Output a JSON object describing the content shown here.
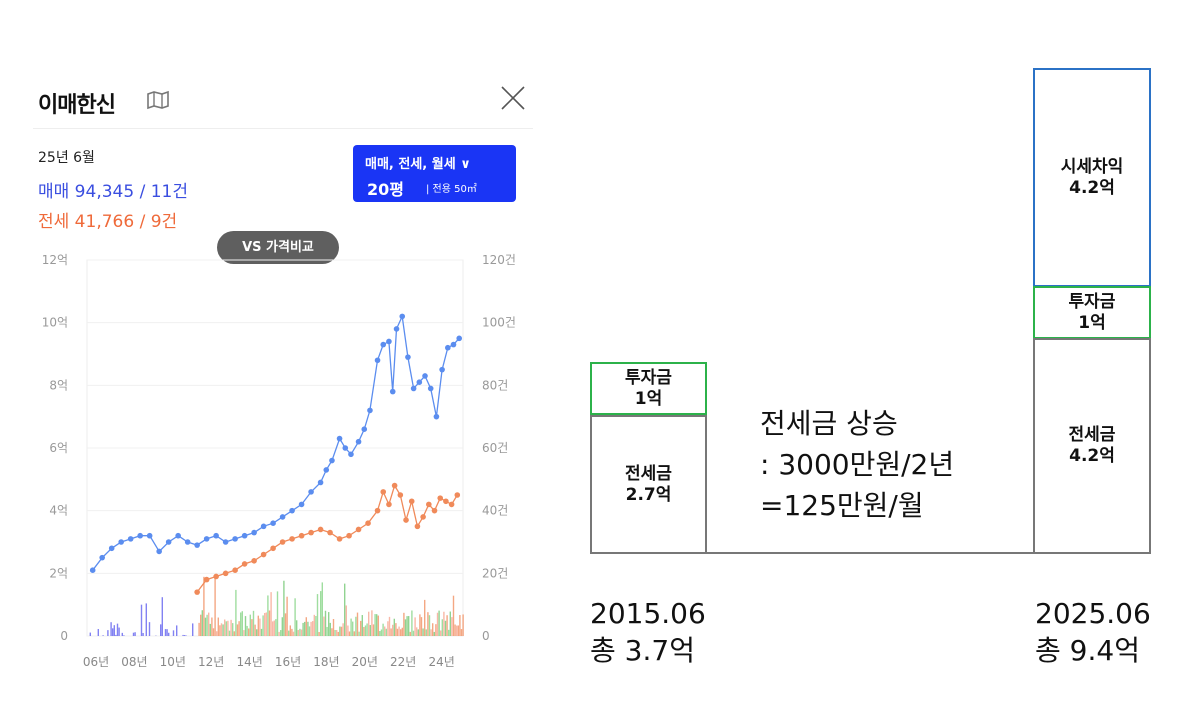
{
  "panel": {
    "title": "이매한신",
    "date": "25년 6월",
    "sale_summary": "매매 94,345 / 11건",
    "jeonse_summary": "전세 41,766 / 9건",
    "filter": {
      "types": "매매, 전세, 월세 ∨",
      "size": "20평",
      "area": "| 전용 50㎡"
    },
    "vs_button": "VS 가격비교"
  },
  "colors": {
    "sale": "#5b8def",
    "jeonse": "#f08a5a",
    "filter_bg": "#1a35f5",
    "green": "#2cb24a",
    "blue_border": "#2b72c6"
  },
  "chart_data": {
    "type": "line",
    "x_ticks": [
      "06년",
      "08년",
      "10년",
      "12년",
      "14년",
      "16년",
      "18년",
      "20년",
      "22년",
      "24년"
    ],
    "y_left_ticks": [
      "12억",
      "10억",
      "8억",
      "6억",
      "4억",
      "2억",
      "0"
    ],
    "y_right_ticks": [
      "120건",
      "100건",
      "80건",
      "60건",
      "40건",
      "20건",
      "0"
    ],
    "ylim": [
      0,
      12
    ],
    "y2lim": [
      0,
      120
    ],
    "xlim": [
      2005.7,
      2025.5
    ],
    "series": [
      {
        "color": "#5b8def",
        "x": [
          2006.0,
          2006.5,
          2007.0,
          2007.5,
          2008.0,
          2008.5,
          2009.0,
          2009.5,
          2010.0,
          2010.5,
          2011.0,
          2011.5,
          2012.0,
          2012.5,
          2013.0,
          2013.5,
          2014.0,
          2014.5,
          2015.0,
          2015.5,
          2016.0,
          2016.5,
          2017.0,
          2017.5,
          2018.0,
          2018.3,
          2018.6,
          2019.0,
          2019.3,
          2019.6,
          2020.0,
          2020.3,
          2020.6,
          2021.0,
          2021.3,
          2021.6,
          2021.8,
          2022.0,
          2022.3,
          2022.6,
          2022.9,
          2023.2,
          2023.5,
          2023.8,
          2024.1,
          2024.4,
          2024.7,
          2025.0,
          2025.3
        ],
        "values": [
          2.1,
          2.5,
          2.8,
          3.0,
          3.1,
          3.2,
          3.2,
          2.7,
          3.0,
          3.2,
          3.0,
          2.9,
          3.1,
          3.2,
          3.0,
          3.1,
          3.2,
          3.3,
          3.5,
          3.6,
          3.8,
          4.0,
          4.2,
          4.6,
          4.9,
          5.3,
          5.6,
          6.3,
          6.0,
          5.8,
          6.2,
          6.6,
          7.2,
          8.8,
          9.3,
          9.4,
          7.8,
          9.8,
          10.2,
          8.9,
          7.9,
          8.1,
          8.3,
          7.9,
          7.0,
          8.5,
          9.2,
          9.3,
          9.5
        ]
      },
      {
        "color": "#f08a5a",
        "x": [
          2011.5,
          2012.0,
          2012.5,
          2013.0,
          2013.5,
          2014.0,
          2014.5,
          2015.0,
          2015.5,
          2016.0,
          2016.5,
          2017.0,
          2017.5,
          2018.0,
          2018.5,
          2019.0,
          2019.5,
          2020.0,
          2020.5,
          2021.0,
          2021.3,
          2021.6,
          2021.9,
          2022.2,
          2022.5,
          2022.8,
          2023.1,
          2023.4,
          2023.7,
          2024.0,
          2024.3,
          2024.6,
          2024.9,
          2025.2
        ],
        "values": [
          1.4,
          1.8,
          1.9,
          2.0,
          2.1,
          2.3,
          2.4,
          2.6,
          2.8,
          3.0,
          3.1,
          3.2,
          3.3,
          3.4,
          3.3,
          3.1,
          3.2,
          3.4,
          3.6,
          4.0,
          4.6,
          4.2,
          4.8,
          4.5,
          3.7,
          4.3,
          3.5,
          3.8,
          4.2,
          4.0,
          4.4,
          4.3,
          4.2,
          4.5
        ]
      }
    ]
  },
  "diagram": {
    "left_invest_title": "투자금",
    "left_invest_value": "1억",
    "left_jeonse_title": "전세금",
    "left_jeonse_value": "2.7억",
    "middle_line1": "전세금 상승",
    "middle_line2": ": 3000만원/2년",
    "middle_line3": "=125만원/월",
    "right_gain_title": "시세차익",
    "right_gain_value": "4.2억",
    "right_invest_title": "투자금",
    "right_invest_value": "1억",
    "right_jeonse_title": "전세금",
    "right_jeonse_value": "4.2억",
    "left_year": "2015.06",
    "left_total": "총 3.7억",
    "right_year": "2025.06",
    "right_total": "총 9.4억"
  }
}
